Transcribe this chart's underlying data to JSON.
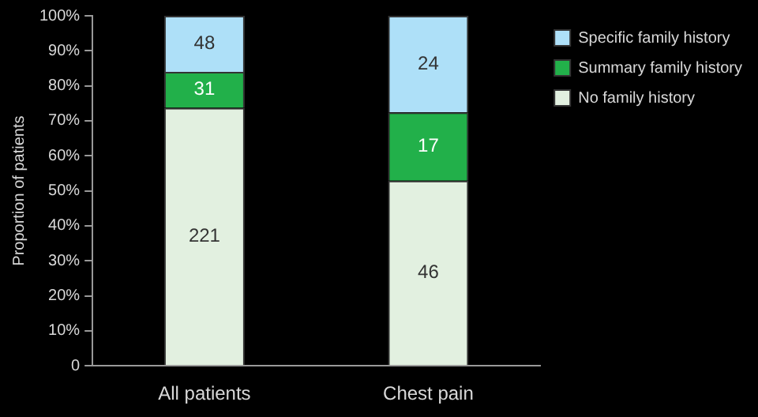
{
  "chart_data": {
    "type": "bar",
    "stacked": true,
    "ylabel": "Proportion of patients",
    "categories": [
      "All patients",
      "Chest pain"
    ],
    "series": [
      {
        "name": "No family history",
        "color": "#e2f0e0",
        "values": [
          73.7,
          52.9
        ]
      },
      {
        "name": "Summary family history",
        "color": "#22b04a",
        "values": [
          10.3,
          19.5
        ]
      },
      {
        "name": "Specific family history",
        "color": "#aee0f8",
        "values": [
          16.0,
          27.6
        ]
      }
    ],
    "annotations": [
      "221",
      "31",
      "48",
      "46",
      "17",
      "24"
    ],
    "ylim": [
      0,
      100
    ],
    "yticks": [
      0,
      {
        "value": 10,
        "label": "10%"
      },
      {
        "value": 20,
        "label": "20%"
      },
      {
        "value": 30,
        "label": "30%"
      },
      {
        "value": 40,
        "label": "40%"
      },
      {
        "value": 50,
        "label": "50%"
      },
      {
        "value": 60,
        "label": "60%"
      },
      {
        "value": 70,
        "label": "70%"
      },
      {
        "value": 80,
        "label": "80%"
      },
      {
        "value": 90,
        "label": "90%"
      },
      {
        "value": 100,
        "label": "100%"
      }
    ],
    "legend": "top right"
  }
}
